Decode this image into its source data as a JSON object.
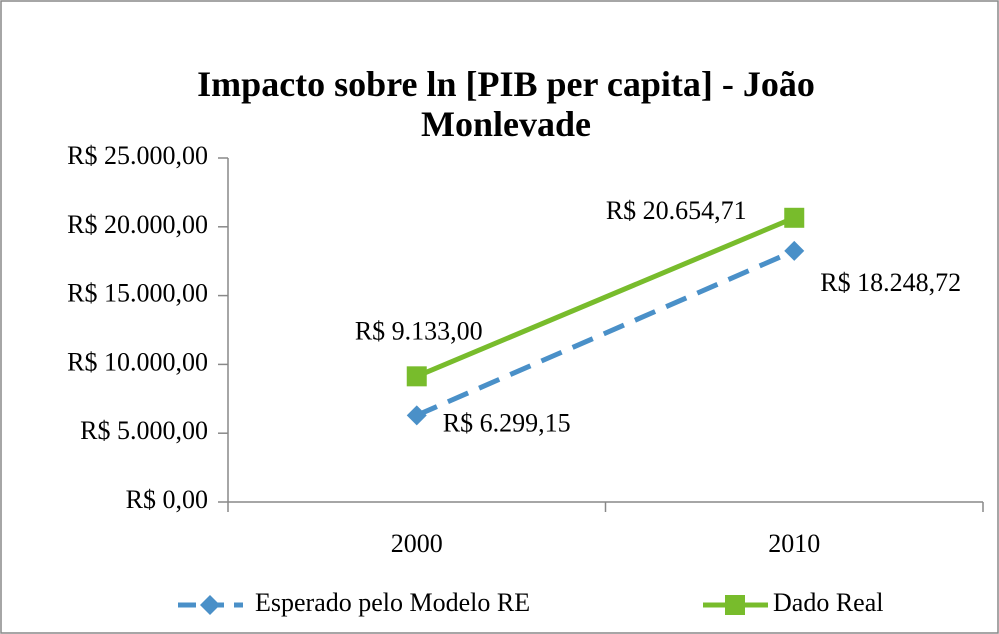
{
  "chart_data": {
    "type": "line",
    "title": "Impacto sobre ln [PIB per capita] - João Monlevade",
    "categories": [
      "2000",
      "2010"
    ],
    "series": [
      {
        "name": "Esperado pelo Modelo RE",
        "color": "#4a90c8",
        "line_style": "dashed",
        "marker": "diamond",
        "values": [
          6299.15,
          18248.72
        ],
        "value_labels": [
          "R$ 6.299,15",
          "R$ 18.248,72"
        ]
      },
      {
        "name": "Dado Real",
        "color": "#78bc2c",
        "line_style": "solid",
        "marker": "square",
        "values": [
          9133,
          20654.71
        ],
        "value_labels": [
          "R$ 9.133,00",
          "R$ 20.654,71"
        ]
      }
    ],
    "ylim": [
      0,
      25000
    ],
    "yticks": [
      {
        "value": 0,
        "label": "R$ 0,00"
      },
      {
        "value": 5000,
        "label": "R$ 5.000,00"
      },
      {
        "value": 10000,
        "label": "R$ 10.000,00"
      },
      {
        "value": 15000,
        "label": "R$ 15.000,00"
      },
      {
        "value": 20000,
        "label": "R$ 20.000,00"
      },
      {
        "value": 25000,
        "label": "R$ 25.000,00"
      }
    ],
    "grid": false,
    "legend": "bottom"
  }
}
